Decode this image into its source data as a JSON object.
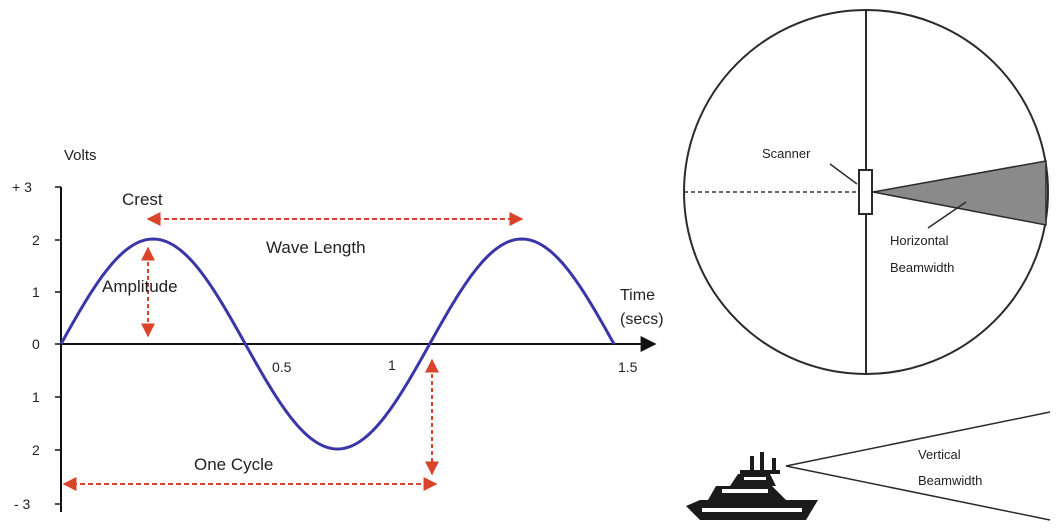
{
  "wave_chart": {
    "y_axis_label": "Volts",
    "x_axis_label_line1": "Time",
    "x_axis_label_line2": "(secs)",
    "y_tick_labels": [
      "+ 3",
      "2",
      "1",
      "0",
      "1",
      "2",
      "- 3"
    ],
    "x_tick_labels": [
      "0.5",
      "1",
      "1.5"
    ],
    "annotations": {
      "crest": "Crest",
      "wave_length": "Wave Length",
      "amplitude": "Amplitude",
      "one_cycle": "One Cycle"
    },
    "colors": {
      "wave": "#3a36a8",
      "arrows": "#d9432a",
      "axes": "#111111"
    }
  },
  "chart_data": {
    "type": "line",
    "ylabel": "Volts",
    "xlabel": "Time (secs)",
    "ylim": [
      -3,
      3
    ],
    "xlim": [
      0,
      1.5
    ],
    "x_ticks": [
      0.5,
      1,
      1.5
    ],
    "series": [
      {
        "x": [
          0,
          0.125,
          0.25,
          0.375,
          0.5,
          0.625,
          0.75,
          0.875,
          1,
          1.125,
          1.25,
          1.375,
          1.5
        ],
        "y": [
          0,
          1.41,
          2,
          1.41,
          0,
          -1.41,
          -2,
          -1.41,
          0,
          1.41,
          2,
          1.41,
          0
        ]
      }
    ]
  },
  "radar": {
    "scanner_label": "Scanner",
    "horizontal_label_line1": "Horizontal",
    "horizontal_label_line2": "Beamwidth",
    "vertical_label_line1": "Vertical",
    "vertical_label_line2": "Beamwidth"
  }
}
